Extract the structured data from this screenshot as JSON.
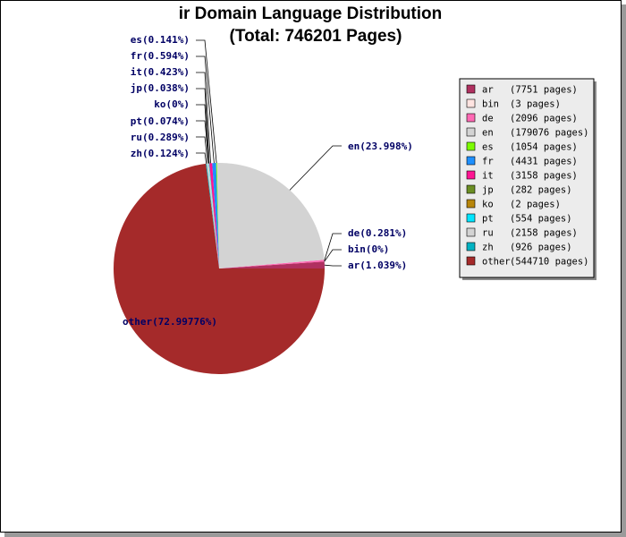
{
  "chart_data": {
    "type": "pie",
    "title": "ir Domain Language Distribution",
    "subtitle": "(Total: 746201 Pages)",
    "slices": [
      {
        "key": "ar",
        "label": "ar(1.039%)",
        "legend_name": "ar",
        "legend_count": "(7751 pages)",
        "value": 7751,
        "color": "#b03060"
      },
      {
        "key": "bin",
        "label": "bin(0%)",
        "legend_name": "bin",
        "legend_count": "(3 pages)",
        "value": 3,
        "color": "#ffe4e1"
      },
      {
        "key": "de",
        "label": "de(0.281%)",
        "legend_name": "de",
        "legend_count": "(2096 pages)",
        "value": 2096,
        "color": "#ff69b4"
      },
      {
        "key": "en",
        "label": "en(23.998%)",
        "legend_name": "en",
        "legend_count": "(179076 pages)",
        "value": 179076,
        "color": "#d3d3d3"
      },
      {
        "key": "es",
        "label": "es(0.141%)",
        "legend_name": "es",
        "legend_count": "(1054 pages)",
        "value": 1054,
        "color": "#7cfc00"
      },
      {
        "key": "fr",
        "label": "fr(0.594%)",
        "legend_name": "fr",
        "legend_count": "(4431 pages)",
        "value": 4431,
        "color": "#1e90ff"
      },
      {
        "key": "it",
        "label": "it(0.423%)",
        "legend_name": "it",
        "legend_count": "(3158 pages)",
        "value": 3158,
        "color": "#ff1493"
      },
      {
        "key": "jp",
        "label": "jp(0.038%)",
        "legend_name": "jp",
        "legend_count": "(282 pages)",
        "value": 282,
        "color": "#6b8e23"
      },
      {
        "key": "ko",
        "label": "ko(0%)",
        "legend_name": "ko",
        "legend_count": "(2 pages)",
        "value": 2,
        "color": "#b8860b"
      },
      {
        "key": "pt",
        "label": "pt(0.074%)",
        "legend_name": "pt",
        "legend_count": "(554 pages)",
        "value": 554,
        "color": "#00e5ff"
      },
      {
        "key": "ru",
        "label": "ru(0.289%)",
        "legend_name": "ru",
        "legend_count": "(2158 pages)",
        "value": 2158,
        "color": "#d3d3d3"
      },
      {
        "key": "zh",
        "label": "zh(0.124%)",
        "legend_name": "zh",
        "legend_count": "(926 pages)",
        "value": 926,
        "color": "#00b2c2"
      },
      {
        "key": "other",
        "label": "other(72.99776%)",
        "legend_name": "other",
        "legend_count": "(544710 pages)",
        "value": 544710,
        "color": "#a52a2a"
      }
    ],
    "legend_position": "right"
  }
}
